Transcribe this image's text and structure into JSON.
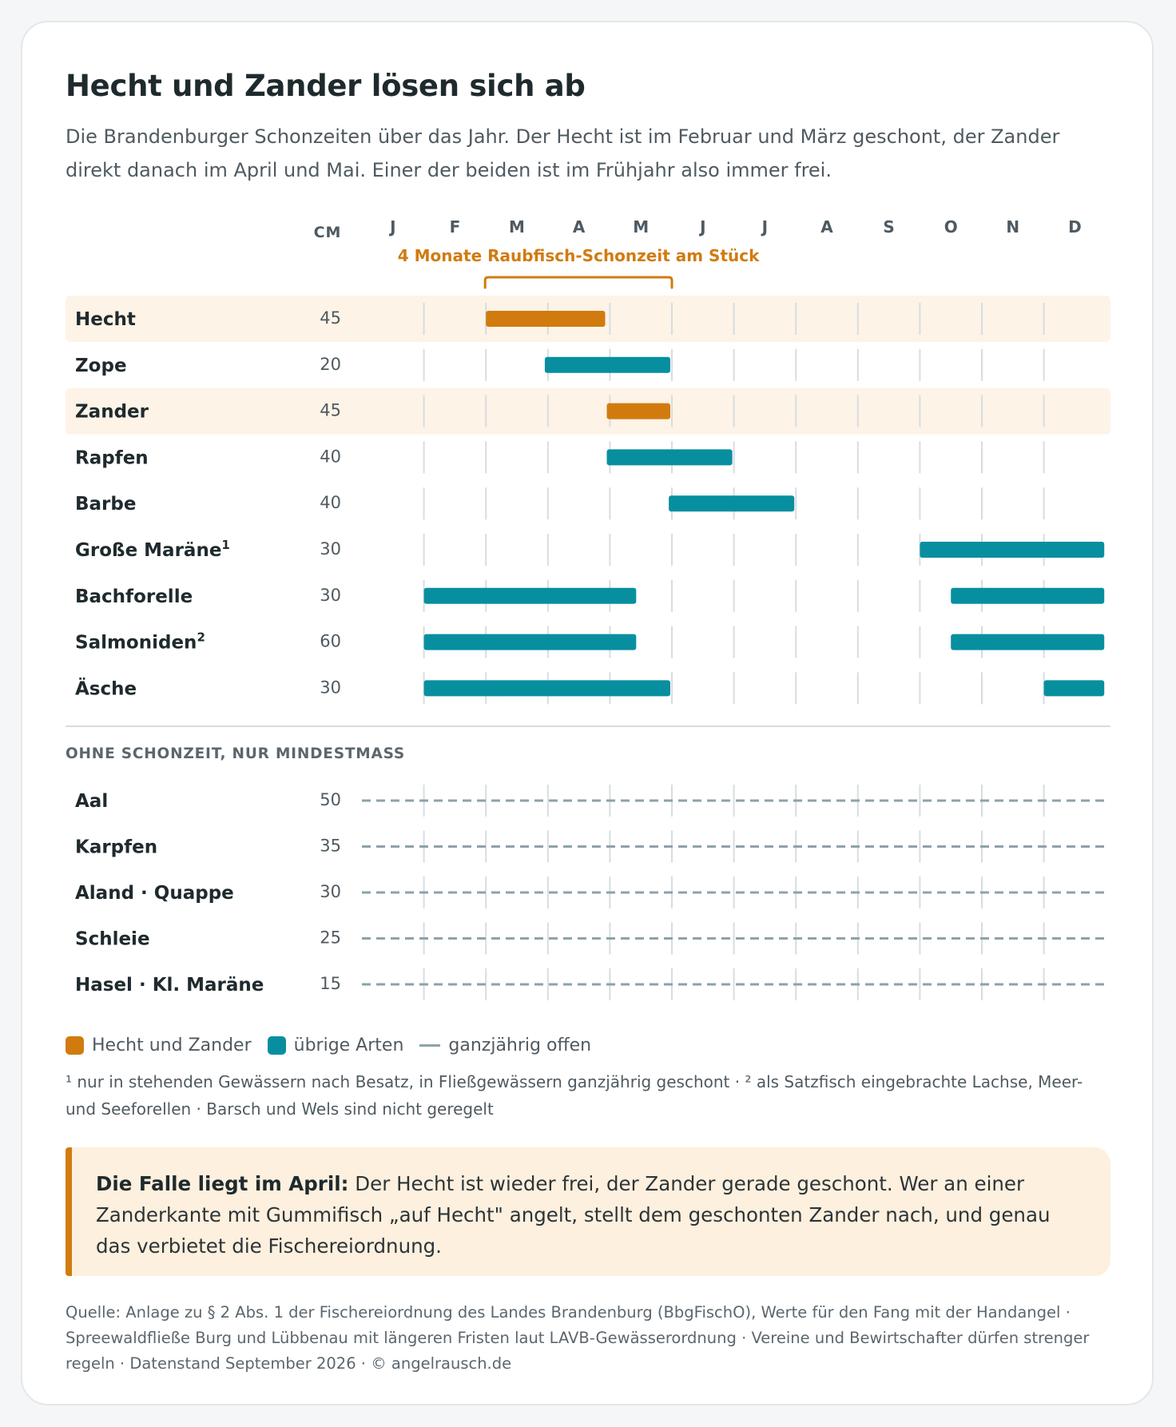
{
  "title": "Hecht und Zander lösen sich ab",
  "subtitle": "Die Brandenburger Schonzeiten über das Jahr. Der Hecht ist im Februar und März geschont, der Zander direkt danach im April und Mai. Einer der beiden ist im Frühjahr also immer frei.",
  "colors": {
    "accent": "#d17b0f",
    "teal": "#078fa0",
    "highlight_row": "#fdf3e6",
    "dash": "#8ea2aa",
    "grid": "#d6dde1"
  },
  "chart_data": {
    "type": "range-bar",
    "cm_label": "CM",
    "months": [
      "J",
      "F",
      "M",
      "A",
      "M",
      "J",
      "J",
      "A",
      "S",
      "O",
      "N",
      "D"
    ],
    "bracket_label": "4 Monate Raubfisch-Schonzeit am Stück",
    "bracket_range": [
      2.0,
      5.0
    ],
    "species": [
      {
        "name": "Hecht",
        "sup": "",
        "cm": "45",
        "group": "Hecht und Zander",
        "highlight": true,
        "periods": [
          [
            2.0,
            3.95
          ]
        ]
      },
      {
        "name": "Zope",
        "sup": "",
        "cm": "20",
        "group": "übrige Arten",
        "highlight": false,
        "periods": [
          [
            2.95,
            5.0
          ]
        ]
      },
      {
        "name": "Zander",
        "sup": "",
        "cm": "45",
        "group": "Hecht und Zander",
        "highlight": true,
        "periods": [
          [
            3.95,
            5.0
          ]
        ]
      },
      {
        "name": "Rapfen",
        "sup": "",
        "cm": "40",
        "group": "übrige Arten",
        "highlight": false,
        "periods": [
          [
            3.95,
            6.0
          ]
        ]
      },
      {
        "name": "Barbe",
        "sup": "",
        "cm": "40",
        "group": "übrige Arten",
        "highlight": false,
        "periods": [
          [
            4.95,
            7.0
          ]
        ]
      },
      {
        "name": "Große Maräne",
        "sup": "1",
        "cm": "30",
        "group": "übrige Arten",
        "highlight": false,
        "periods": [
          [
            9.0,
            12.0
          ]
        ]
      },
      {
        "name": "Bachforelle",
        "sup": "",
        "cm": "30",
        "group": "übrige Arten",
        "highlight": false,
        "periods": [
          [
            1.0,
            4.45
          ],
          [
            9.5,
            12.0
          ]
        ]
      },
      {
        "name": "Salmoniden",
        "sup": "2",
        "cm": "60",
        "group": "übrige Arten",
        "highlight": false,
        "periods": [
          [
            1.0,
            4.45
          ],
          [
            9.5,
            12.0
          ]
        ]
      },
      {
        "name": "Äsche",
        "sup": "",
        "cm": "30",
        "group": "übrige Arten",
        "highlight": false,
        "periods": [
          [
            1.0,
            5.0
          ],
          [
            11.0,
            12.0
          ]
        ]
      }
    ],
    "no_closed_season_label": "OHNE SCHONZEIT, NUR MINDESTMASS",
    "no_closed_season": [
      {
        "name": "Aal",
        "cm": "50"
      },
      {
        "name": "Karpfen",
        "cm": "35"
      },
      {
        "name": "Aland · Quappe",
        "cm": "30"
      },
      {
        "name": "Schleie",
        "cm": "25"
      },
      {
        "name": "Hasel · Kl. Maräne",
        "cm": "15"
      }
    ]
  },
  "legend": {
    "hecht_zander": "Hecht und Zander",
    "others": "übrige Arten",
    "open": "ganzjährig offen"
  },
  "footnote": "¹ nur in stehenden Gewässern nach Besatz, in Fließgewässern ganzjährig geschont · ² als Satzfisch eingebrachte Lachse, Meer- und Seeforellen · Barsch und Wels sind nicht geregelt",
  "callout": {
    "lead": "Die Falle liegt im April:",
    "text": " Der Hecht ist wieder frei, der Zander gerade geschont. Wer an einer Zanderkante mit Gummifisch „auf Hecht\" angelt, stellt dem geschonten Zander nach, und genau das verbietet die Fischereiordnung."
  },
  "source": "Quelle: Anlage zu § 2 Abs. 1 der Fischereiordnung des Landes Brandenburg (BbgFischO), Werte für den Fang mit der Handangel · Spreewaldfließe Burg und Lübbenau mit längeren Fristen laut LAVB-Gewässerordnung · Vereine und Bewirtschafter dürfen strenger regeln · Datenstand September 2026 · © angelrausch.de"
}
